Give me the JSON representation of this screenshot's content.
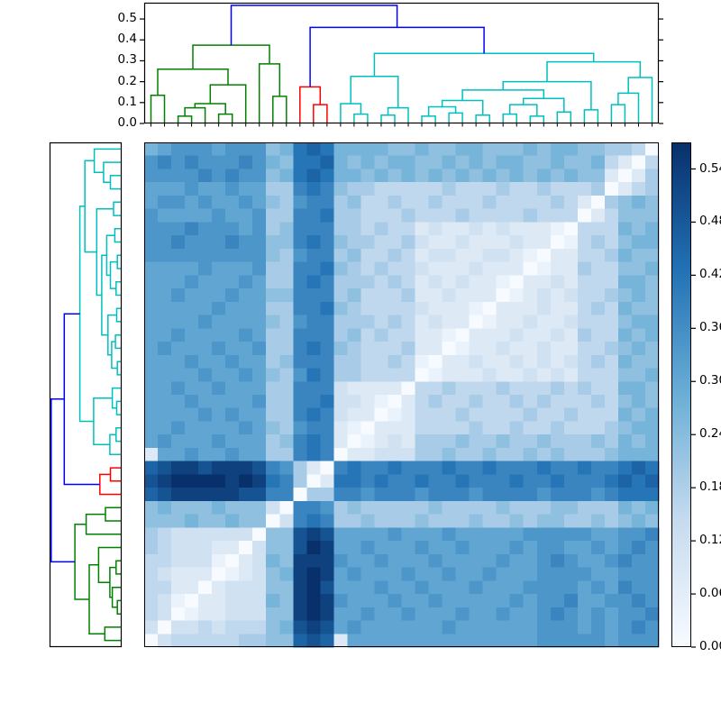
{
  "figure": {
    "description": "Hierarchically clustered distance-matrix heatmap with top and left dendrograms and a vertical colorbar",
    "background": "#ffffff"
  },
  "chart_data": {
    "type": "heatmap",
    "n_leaves": 38,
    "vmin": 0.0,
    "vmax": 0.57,
    "colormap": "Blues",
    "colormap_stops": [
      [
        247,
        251,
        255
      ],
      [
        198,
        219,
        239
      ],
      [
        107,
        174,
        214
      ],
      [
        33,
        113,
        181
      ],
      [
        8,
        48,
        107
      ]
    ],
    "matrix_note": "38x38 distance matrix, hex digit 0-f per cell, value = digit/15*0.57, rows in leaf order; displayed row i uses leaf 37-i (diagonal runs top-right to bottom-left)",
    "matrix_hex_rows_leaf_order": [
      "03444445566cdc288888888888888999998999",
      "30334344467ded8988888898888889998989a9",
      "43012233366efe8898898889889889a989899a",
      "43102233376efe98889889888889899a8899a9",
      "44220233366efd888988988898889999898a99",
      "43222012367efe898889889889888999988999",
      "44333102376eee9889888988889889a9889a99",
      "54333220366dfe8898889889888989988989a9",
      "54333333066ded88889888988888999998899a",
      "66676676603aba556555655565565665565676",
      "67666766630aa9565555565555655566555767",
      "cdeeeeeddaa055aa9aaa9aaa9aaaa9aaa9abbb",
      "deffffefeba502bbabaabaabaaabaabaaabcbc",
      "cdeedeeeda9520abaabaaabaabaaabaabaabcb",
      "28898898855aba022333556556556565556777",
      "89888988856aba201232555655655655565767",
      "889888898659aa210222444454454454445677",
      "88889898855aba322012444544445445444767",
      "88898888955aab332102454454454544454676",
      "88988988855aaa322220445444544454544776",
      "888898898659ba554444012223223232444667",
      "88898898856aaa554454102232232323454766",
      "89888988955aba654445220122322322445676",
      "88988889855aaa564544221022232232544767",
      "888898888659aa555454232201223223444677",
      "88888988855aab654444322210222322454766",
      "88988898866aaa564445223222012323445676",
      "88898889855aba555454232322102232444776",
      "88889888955aab654544322232220122544667",
      "999999999659aa564454233223321022445766",
      "99a999a9966aba655445322322232201454677",
      "999a9998956aaa554544232232322210444767",
      "98888988955aab554445444544445444024666",
      "899898898659aa564454454445444454205676",
      "88898898855aba655444445444544544450245",
      "9999a9a9967bcb776767676767676767662025",
      "9a9a999a976bbc767677667676776676674204",
      "78999899967bcb777766766776667677665540"
    ],
    "row_display_order": "reversed",
    "top_dendrogram": {
      "axis_tick_labels": [
        "0.0",
        "0.1",
        "0.2",
        "0.3",
        "0.4",
        "0.5"
      ],
      "axis_tick_values": [
        0.0,
        0.1,
        0.2,
        0.3,
        0.4,
        0.5
      ],
      "axis_max": 0.578,
      "cluster_colors": {
        "g": "#008000",
        "r": "#ff0000",
        "c": "#00bfbf",
        "b": "#0000ff"
      },
      "links": [
        [
          "L2",
          "L3",
          0.035,
          "g"
        ],
        [
          0,
          "L4",
          0.075,
          "g"
        ],
        [
          "L5",
          "L6",
          0.045,
          "g"
        ],
        [
          1,
          2,
          0.095,
          "g"
        ],
        [
          3,
          "L7",
          0.185,
          "g"
        ],
        [
          "L0",
          "L1",
          0.135,
          "g"
        ],
        [
          5,
          4,
          0.26,
          "g"
        ],
        [
          "L9",
          "L10",
          0.13,
          "g"
        ],
        [
          "L8",
          7,
          0.285,
          "g"
        ],
        [
          6,
          8,
          0.375,
          "g"
        ],
        [
          "L12",
          "L13",
          0.09,
          "r"
        ],
        [
          "L11",
          10,
          0.175,
          "r"
        ],
        [
          "L15",
          "L16",
          0.045,
          "c"
        ],
        [
          "L14",
          12,
          0.095,
          "c"
        ],
        [
          "L17",
          "L18",
          0.04,
          "c"
        ],
        [
          14,
          "L19",
          0.075,
          "c"
        ],
        [
          13,
          15,
          0.225,
          "c"
        ],
        [
          "L20",
          "L21",
          0.035,
          "c"
        ],
        [
          "L22",
          "L23",
          0.05,
          "c"
        ],
        [
          17,
          18,
          0.08,
          "c"
        ],
        [
          "L24",
          "L25",
          0.04,
          "c"
        ],
        [
          19,
          20,
          0.11,
          "c"
        ],
        [
          "L26",
          "L27",
          0.045,
          "c"
        ],
        [
          "L28",
          "L29",
          0.035,
          "c"
        ],
        [
          22,
          23,
          0.09,
          "c"
        ],
        [
          "L30",
          "L31",
          0.055,
          "c"
        ],
        [
          24,
          25,
          0.12,
          "c"
        ],
        [
          21,
          26,
          0.16,
          "c"
        ],
        [
          "L32",
          "L33",
          0.065,
          "c"
        ],
        [
          27,
          28,
          0.2,
          "c"
        ],
        [
          "L34",
          "L35",
          0.09,
          "c"
        ],
        [
          30,
          "L36",
          0.145,
          "c"
        ],
        [
          31,
          "L37",
          0.22,
          "c"
        ],
        [
          29,
          32,
          0.295,
          "c"
        ],
        [
          16,
          33,
          0.335,
          "c"
        ],
        [
          11,
          34,
          0.46,
          "b"
        ],
        [
          9,
          35,
          0.565,
          "b"
        ]
      ]
    },
    "left_dendrogram": {
      "note": "same linkage as top dendrogram, leaves ordered top-to-bottom as leaf 37..0, height grows leftward",
      "axis_max": 0.578
    },
    "colorbar": {
      "tick_labels": [
        "0.00",
        "0.06",
        "0.12",
        "0.18",
        "0.24",
        "0.30",
        "0.36",
        "0.42",
        "0.48",
        "0.54"
      ],
      "tick_values": [
        0.0,
        0.06,
        0.12,
        0.18,
        0.24,
        0.3,
        0.36,
        0.42,
        0.48,
        0.54
      ],
      "min_color": "#f7fbff",
      "max_color": "#08306b"
    }
  }
}
